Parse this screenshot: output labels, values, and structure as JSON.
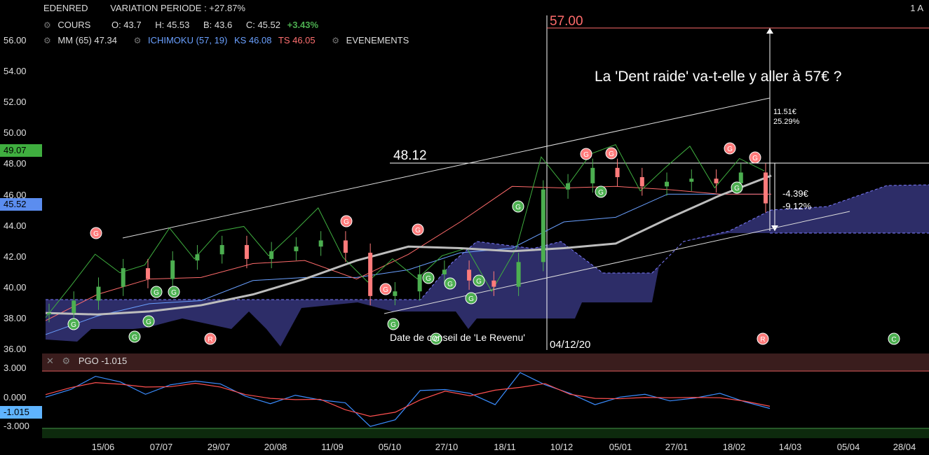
{
  "header": {
    "ticker": "EDENRED",
    "variation": "VARIATION PERIODE : +27.87%",
    "corner": "1 A",
    "cours_label": "COURS",
    "open": "O: 43.7",
    "high": "H: 45.53",
    "low": "B: 43.6",
    "close": "C: 45.52",
    "change": "+3.43%",
    "mm_label": "MM (65) 47.34",
    "ichimoku_label": "ICHIMOKU (57, 19)",
    "ks_label": "KS 46.08",
    "ts_label": "TS 46.05",
    "events_label": "EVENEMENTS"
  },
  "badges": {
    "ks_value": "49.07",
    "price_value": "45.52",
    "pgo_value": "-1.015"
  },
  "annotations": {
    "target_price": "57.00",
    "question": "La 'Dent raide' va-t-elle y aller à 57€ ?",
    "resistance": "48.12",
    "upside_amount": "11.51€",
    "upside_pct": "25.29%",
    "downside_amount": "-4.39€",
    "downside_pct": "-9.12%",
    "advice_date_text": "Date de conseil de 'Le Revenu'",
    "vertical_date": "04/12/20"
  },
  "pgo": {
    "title": "PGO -1.015",
    "levels": [
      "3.000",
      "0.000",
      "-3.000"
    ]
  },
  "colors": {
    "up_candle": "#4caf50",
    "down_candle": "#ff7b7b",
    "cloud": "#2f2f6e",
    "ks": "#6aa0ff",
    "ts": "#ff6b6b",
    "chikou": "#3fae3f",
    "mm": "#bdbdbd"
  },
  "chart_data": {
    "type": "line",
    "title": "EDENRED",
    "xlabel": "",
    "ylabel": "",
    "ylim": [
      36,
      57
    ],
    "yticks": [
      "56.00",
      "54.00",
      "52.00",
      "50.00",
      "48.00",
      "46.00",
      "44.00",
      "42.00",
      "40.00",
      "38.00",
      "36.00"
    ],
    "xticks": [
      "15/06",
      "07/07",
      "29/07",
      "20/08",
      "11/09",
      "05/10",
      "27/10",
      "18/11",
      "10/12",
      "05/01",
      "27/01",
      "18/02",
      "14/03",
      "05/04",
      "28/04"
    ],
    "series": [
      {
        "name": "MM (65)",
        "values": [
          38.4,
          38.3,
          38.5,
          38.9,
          39.6,
          40.6,
          41.8,
          42.7,
          42.6,
          42.4,
          42.6,
          42.9,
          44.5,
          46.0,
          47.3
        ]
      },
      {
        "name": "ICHIMOKU KS",
        "values": [
          37.0,
          38.2,
          39.0,
          39.2,
          40.5,
          40.7,
          40.7,
          41.2,
          42.3,
          42.6,
          44.3,
          44.6,
          46.1,
          46.1,
          46.1
        ]
      },
      {
        "name": "ICHIMOKU TS",
        "values": [
          37.9,
          39.6,
          40.6,
          40.7,
          41.6,
          41.8,
          40.6,
          42.2,
          44.3,
          46.6,
          46.5,
          46.6,
          46.4,
          46.1,
          46.1
        ]
      }
    ],
    "closes": [
      38.4,
      39.2,
      40.1,
      41.3,
      40.6,
      41.8,
      42.2,
      42.8,
      41.9,
      42.4,
      42.7,
      43.1,
      42.3,
      39.5,
      39.8,
      40.9,
      41.2,
      40.5,
      40.1,
      41.7,
      46.4,
      46.8,
      47.8,
      47.2,
      46.6,
      46.9,
      47.1,
      46.8,
      47.5,
      45.5
    ],
    "pgo_ylim": [
      -3.5,
      3.5
    ],
    "pgo_values": [
      0.2,
      1.0,
      2.4,
      1.8,
      0.5,
      1.5,
      1.9,
      1.6,
      0.3,
      -0.5,
      0.4,
      -0.1,
      -0.4,
      -2.9,
      -2.2,
      0.9,
      1.0,
      0.6,
      -0.6,
      2.8,
      1.5,
      0.6,
      -0.6,
      0.2,
      0.5,
      -0.2,
      0.1,
      0.6,
      -0.3,
      -1.0
    ]
  }
}
